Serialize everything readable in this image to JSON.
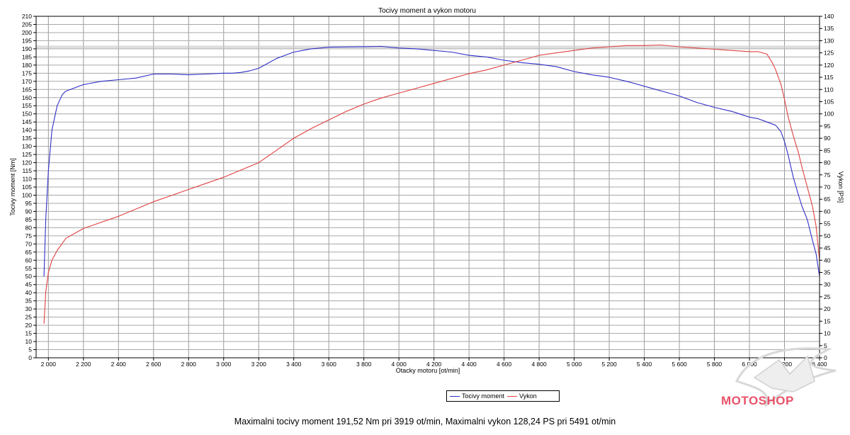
{
  "summary_text": "Maximalni tocivy moment 191,52 Nm pri 3919 ot/min,  Maximalni vykon 128,24 PS pri 5491 ot/min",
  "brand": {
    "name": "MOTOSHOP",
    "color": "#e8526a"
  },
  "chart_data": {
    "type": "line",
    "title": "Tocivy moment a vykon motoru",
    "xlabel": "Otacky motoru [ot/min]",
    "ylabel_left": "Tocivy moment [Nm]",
    "ylabel_right": "Vykon [PS]",
    "xlim": [
      1930,
      6400
    ],
    "ylim_left": [
      0,
      210
    ],
    "ylim_right": [
      0,
      140
    ],
    "x_ticks": [
      2000,
      2200,
      2400,
      2600,
      2800,
      3000,
      3200,
      3400,
      3600,
      3800,
      4000,
      4200,
      4400,
      4600,
      4800,
      5000,
      5200,
      5400,
      5600,
      5800,
      6000,
      6200,
      6400
    ],
    "x_tick_labels": [
      "2 000",
      "2 200",
      "2 400",
      "2 600",
      "2 800",
      "3 000",
      "3 200",
      "3 400",
      "3 600",
      "3 800",
      "4 000",
      "4 200",
      "4 400",
      "4 600",
      "4 800",
      "5 000",
      "5 200",
      "5 400",
      "5 600",
      "5 800",
      "6 000",
      "6 200",
      "6 400"
    ],
    "y_left_step": 5,
    "y_right_step": 5,
    "grid": true,
    "legend_position": "bottom-center",
    "series": [
      {
        "name": "Tocivy moment",
        "axis": "left",
        "color": "#2f2fc8",
        "x": [
          1975,
          1985,
          2000,
          2020,
          2050,
          2080,
          2100,
          2150,
          2200,
          2300,
          2400,
          2500,
          2600,
          2700,
          2800,
          2900,
          3000,
          3050,
          3100,
          3150,
          3200,
          3250,
          3300,
          3350,
          3400,
          3450,
          3500,
          3550,
          3600,
          3700,
          3800,
          3900,
          4000,
          4100,
          4200,
          4300,
          4400,
          4500,
          4600,
          4700,
          4800,
          4900,
          5000,
          5100,
          5200,
          5300,
          5400,
          5500,
          5600,
          5700,
          5800,
          5900,
          6000,
          6050,
          6100,
          6150,
          6180,
          6200,
          6220,
          6250,
          6280,
          6300,
          6330,
          6360,
          6380,
          6400
        ],
        "values": [
          50,
          85,
          115,
          140,
          155,
          162,
          164,
          166,
          168,
          170,
          171,
          172,
          174.5,
          174.5,
          174,
          174.5,
          175,
          175,
          175.5,
          176.5,
          178,
          181,
          184,
          186,
          188,
          189,
          190,
          190.5,
          191,
          191.2,
          191.3,
          191.5,
          190.5,
          190,
          189,
          188,
          186,
          185,
          183,
          181.5,
          180.5,
          179,
          176,
          174,
          172.5,
          170,
          167,
          164,
          161,
          157,
          154,
          151.5,
          148,
          147,
          145,
          143,
          139,
          133,
          125,
          111,
          100,
          93,
          85,
          72,
          64,
          50
        ]
      },
      {
        "name": "Vykon",
        "axis": "right",
        "color": "#e04040",
        "x": [
          1975,
          1985,
          2000,
          2020,
          2050,
          2080,
          2100,
          2150,
          2200,
          2300,
          2400,
          2500,
          2600,
          2700,
          2800,
          2900,
          3000,
          3100,
          3200,
          3300,
          3400,
          3500,
          3600,
          3700,
          3800,
          3900,
          4000,
          4100,
          4200,
          4300,
          4400,
          4500,
          4600,
          4700,
          4800,
          4900,
          5000,
          5100,
          5200,
          5300,
          5400,
          5491,
          5600,
          5700,
          5800,
          5900,
          6000,
          6050,
          6100,
          6130,
          6150,
          6180,
          6200,
          6220,
          6250,
          6280,
          6300,
          6330,
          6360,
          6380,
          6400
        ],
        "values": [
          14,
          27,
          35,
          40,
          44,
          47,
          49,
          51,
          53,
          55.5,
          58,
          61,
          64,
          66.5,
          69,
          71.5,
          74,
          77,
          80,
          85,
          90,
          94,
          97.5,
          101,
          104,
          106.5,
          108.5,
          110.5,
          112.5,
          114.5,
          116.5,
          118,
          120,
          122,
          124,
          125,
          126,
          127,
          127.5,
          128,
          128,
          128.24,
          127.5,
          127,
          126.5,
          126,
          125.5,
          125.5,
          124.5,
          121,
          118,
          112,
          106,
          99,
          91,
          84,
          78,
          70,
          62,
          54,
          40
        ]
      }
    ]
  }
}
